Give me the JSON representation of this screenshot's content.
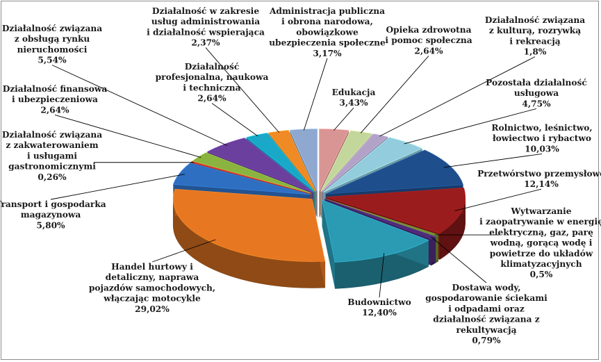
{
  "chart_data": {
    "type": "pie",
    "title": "",
    "three_d": true,
    "exploded": true,
    "slices": [
      {
        "label": "Edukacja",
        "value": 3.43,
        "display": "3,43%",
        "color": "#d99594"
      },
      {
        "label": "Opieka zdrowotna i pomoc społeczna",
        "value": 2.64,
        "display": "2,64%",
        "color": "#c3d69b"
      },
      {
        "label": "Działalność związana z kulturą, rozrywką i rekreacją",
        "value": 1.8,
        "display": "1,8%",
        "color": "#b3a2c7"
      },
      {
        "label": "Pozostała działalność usługowa",
        "value": 4.75,
        "display": "4,75%",
        "color": "#93cddd"
      },
      {
        "label": "Rolnictwo, leśnictwo, łowiectwo i rybactwo",
        "value": 10.03,
        "display": "10,03%",
        "color": "#1f4e8c"
      },
      {
        "label": "Przetwórstwo przemysłowe",
        "value": 12.14,
        "display": "12,14%",
        "color": "#9b1c1c"
      },
      {
        "label": "Wytwarzanie i zaopatrywanie w energię elektryczną, gaz, parę wodną, gorącą wodę i powietrze do układów klimatyzacyjnych",
        "value": 0.5,
        "display": "0,5%",
        "color": "#6f8f2f"
      },
      {
        "label": "Dostawa wody, gospodarowanie ściekami i odpadami oraz działalność związana z rekultywacją",
        "value": 0.79,
        "display": "0,79%",
        "color": "#4e2a7a"
      },
      {
        "label": "Budownictwo",
        "value": 12.4,
        "display": "12,40%",
        "color": "#2a9bb3"
      },
      {
        "label": "Handel hurtowy i detaliczny, naprawa pojazdów samochodowych, włączając motocykle",
        "value": 29.02,
        "display": "29,02%",
        "color": "#e87722"
      },
      {
        "label": "Transport i gospodarka magazynowa",
        "value": 5.8,
        "display": "5,80%",
        "color": "#2e6fc1"
      },
      {
        "label": "Działalność związana z zakwaterowaniem i usługami gastronomicznymi",
        "value": 0.26,
        "display": "0,26%",
        "color": "#c0392b"
      },
      {
        "label": "Działalność finansowa i ubezpieczeniowa",
        "value": 2.64,
        "display": "2,64%",
        "color": "#8ab33f"
      },
      {
        "label": "Działalność związana z obsługą rynku nieruchomości",
        "value": 5.54,
        "display": "5,54%",
        "color": "#6a3f9e"
      },
      {
        "label": "Działalność profesjonalna, naukowa i techniczna",
        "value": 2.64,
        "display": "2,64%",
        "color": "#19a8c7"
      },
      {
        "label": "Działalność w zakresie usług administrowania i działalność wspierająca",
        "value": 2.37,
        "display": "2,37%",
        "color": "#f08a24"
      },
      {
        "label": "Administracja publiczna i obrona narodowa, obowiązkowe ubezpieczenia społeczne",
        "value": 3.17,
        "display": "3,17%",
        "color": "#8fa8cf"
      }
    ],
    "labels": [
      {
        "lines": [
          "Edukacja",
          "3,43%"
        ]
      },
      {
        "lines": [
          "Opieka zdrowotna",
          "i pomoc społeczna",
          "2,64%"
        ]
      },
      {
        "lines": [
          "Działalność związana",
          "z kulturą, rozrywką",
          "i rekreacją",
          "1,8%"
        ]
      },
      {
        "lines": [
          "Pozostała działalność",
          "usługowa",
          "4,75%"
        ]
      },
      {
        "lines": [
          "Rolnictwo, leśnictwo,",
          "łowiectwo i rybactwo",
          "10,03%"
        ]
      },
      {
        "lines": [
          "Przetwórstwo przemysłowe",
          "12,14%"
        ]
      },
      {
        "lines": [
          "Wytwarzanie",
          "i zaopatrywanie w energię",
          "elektryczną, gaz, parę",
          "wodną, gorącą wodę i",
          "powietrze do układów",
          "klimatyzacyjnych",
          "0,5%"
        ]
      },
      {
        "lines": [
          "Dostawa wody,",
          "gospodarowanie ściekami",
          "i odpadami oraz",
          "działalność związana z",
          "rekultywacją",
          "0,79%"
        ]
      },
      {
        "lines": [
          "Budownictwo",
          "12,40%"
        ]
      },
      {
        "lines": [
          "Handel hurtowy i",
          "detaliczny, naprawa",
          "pojazdów samochodowych,",
          "włączając motocykle",
          "29,02%"
        ]
      },
      {
        "lines": [
          "Transport i gospodarka",
          "magazynowa",
          "5,80%"
        ]
      },
      {
        "lines": [
          "Działalność związana",
          "z zakwaterowaniem",
          "i usługami",
          "gastronomicznymi",
          "0,26%"
        ]
      },
      {
        "lines": [
          "Działalność finansowa",
          "i ubezpieczeniowa",
          "2,64%"
        ]
      },
      {
        "lines": [
          "Działalność związana",
          "z obsługą rynku",
          "nieruchomości",
          "5,54%"
        ]
      },
      {
        "lines": [
          "Działalność",
          "profesjonalna, naukowa",
          "i techniczna",
          "2,64%"
        ]
      },
      {
        "lines": [
          "Działalność w zakresie",
          "usług administrowania",
          "i działalność wspierająca",
          "2,37%"
        ]
      },
      {
        "lines": [
          "Administracja publiczna",
          "i obrona narodowa,",
          "obowiązkowe",
          "ubezpieczenia społeczne",
          "3,17%"
        ]
      }
    ]
  }
}
